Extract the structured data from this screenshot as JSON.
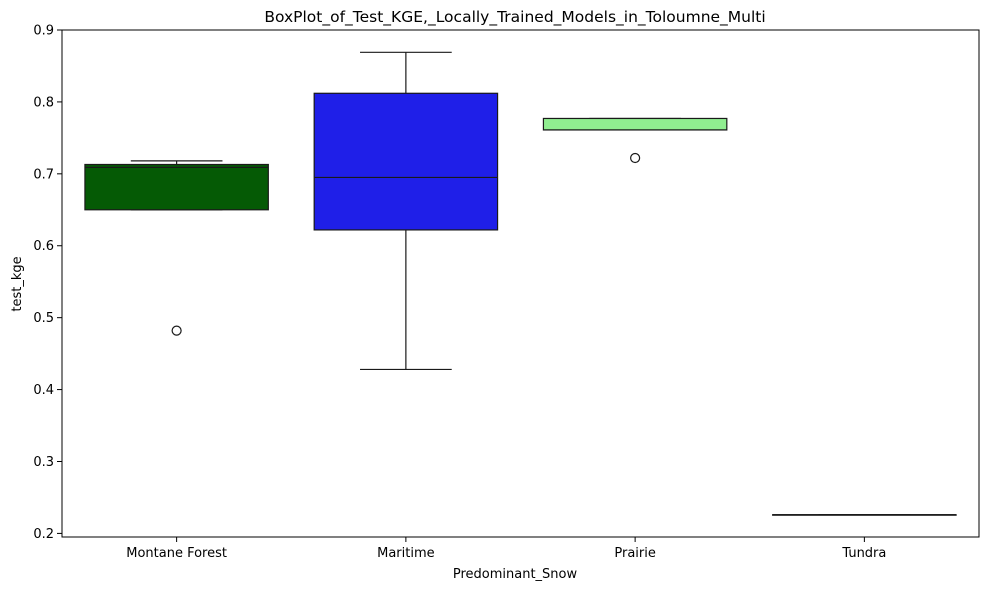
{
  "chart_data": {
    "type": "box",
    "title": "BoxPlot_of_Test_KGE,_Locally_Trained_Models_in_Toloumne_Multi",
    "xlabel": "Predominant_Snow",
    "ylabel": "test_kge",
    "ylim": [
      0.195,
      0.9
    ],
    "yticks": [
      0.2,
      0.3,
      0.4,
      0.5,
      0.6,
      0.7,
      0.8,
      0.9
    ],
    "ytick_labels": [
      "0.2",
      "0.3",
      "0.4",
      "0.5",
      "0.6",
      "0.7",
      "0.8",
      "0.9"
    ],
    "grid": false,
    "categories": [
      "Montane Forest",
      "Maritime",
      "Prairie",
      "Tundra"
    ],
    "boxes": [
      {
        "category": "Montane Forest",
        "color": "#055a05",
        "whisker_low": 0.65,
        "q1": 0.65,
        "median": 0.709,
        "q3": 0.713,
        "whisker_high": 0.718,
        "outliers": [
          0.482
        ]
      },
      {
        "category": "Maritime",
        "color": "#1f1fe8",
        "whisker_low": 0.428,
        "q1": 0.622,
        "median": 0.695,
        "q3": 0.812,
        "whisker_high": 0.869,
        "outliers": []
      },
      {
        "category": "Prairie",
        "color": "#90ee90",
        "whisker_low": 0.761,
        "q1": 0.761,
        "median": 0.761,
        "q3": 0.777,
        "whisker_high": 0.777,
        "outliers": [
          0.722
        ]
      },
      {
        "category": "Tundra",
        "color": "#444444",
        "whisker_low": 0.226,
        "q1": 0.226,
        "median": 0.226,
        "q3": 0.226,
        "whisker_high": 0.226,
        "outliers": []
      }
    ]
  }
}
